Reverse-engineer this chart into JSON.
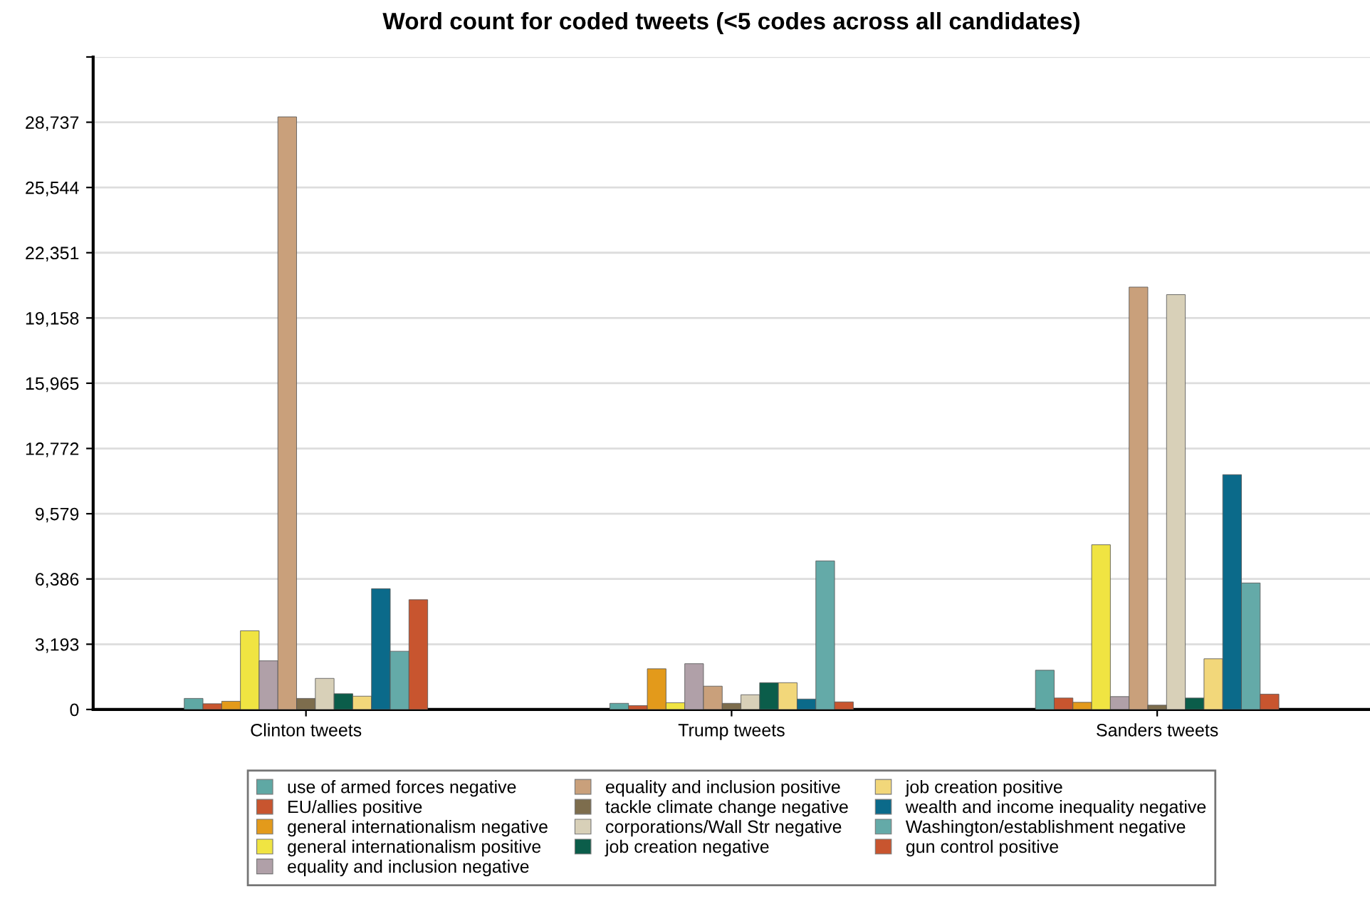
{
  "chart_data": {
    "type": "bar",
    "title": "Word count for coded tweets (<5 codes across all candidates)",
    "categories": [
      "Clinton tweets",
      "Trump tweets",
      "Sanders tweets"
    ],
    "series": [
      {
        "name": "use of armed forces negative",
        "color": "#5fa8a4",
        "values": [
          540,
          300,
          1920
        ]
      },
      {
        "name": "EU/allies positive",
        "color": "#c8552f",
        "values": [
          280,
          190,
          560
        ]
      },
      {
        "name": "general internationalism negative",
        "color": "#e39a1b",
        "values": [
          400,
          1990,
          350
        ]
      },
      {
        "name": "general internationalism positive",
        "color": "#f0e442",
        "values": [
          3850,
          330,
          8060
        ]
      },
      {
        "name": "equality and inclusion negative",
        "color": "#b0a0a8",
        "values": [
          2380,
          2240,
          630
        ]
      },
      {
        "name": "equality and inclusion positive",
        "color": "#c9a07b",
        "values": [
          29000,
          1140,
          20670
        ]
      },
      {
        "name": "tackle climate change negative",
        "color": "#7d6d4d",
        "values": [
          540,
          300,
          210
        ]
      },
      {
        "name": "corporations/Wall Str negative",
        "color": "#d8d0b8",
        "values": [
          1520,
          720,
          20300
        ]
      },
      {
        "name": "job creation negative",
        "color": "#0b5d4a",
        "values": [
          770,
          1310,
          560
        ]
      },
      {
        "name": "job creation positive",
        "color": "#f2d77a",
        "values": [
          650,
          1310,
          2480
        ]
      },
      {
        "name": "wealth and income inequality negative",
        "color": "#0b6a8a",
        "values": [
          5910,
          510,
          11490
        ]
      },
      {
        "name": "Washington/establishment negative",
        "color": "#64aaa8",
        "values": [
          2850,
          7270,
          6190
        ]
      },
      {
        "name": "gun control positive",
        "color": "#c8552f",
        "values": [
          5370,
          370,
          750
        ]
      }
    ],
    "ylim": [
      0,
      31930
    ],
    "yticks": [
      0,
      {
        "value": 3193,
        "label": "3,193"
      },
      {
        "value": 6386,
        "label": "6,386"
      },
      {
        "value": 9579,
        "label": "9,579"
      },
      {
        "value": 12772,
        "label": "12,772"
      },
      {
        "value": 15965,
        "label": "15,965"
      },
      {
        "value": 19158,
        "label": "19,158"
      },
      {
        "value": 22351,
        "label": "22,351"
      },
      {
        "value": 25544,
        "label": "25,544"
      },
      {
        "value": 28737,
        "label": "28,737"
      },
      {
        "value": 31930,
        "label": null
      }
    ],
    "grid": "y",
    "legend": "bottom"
  }
}
